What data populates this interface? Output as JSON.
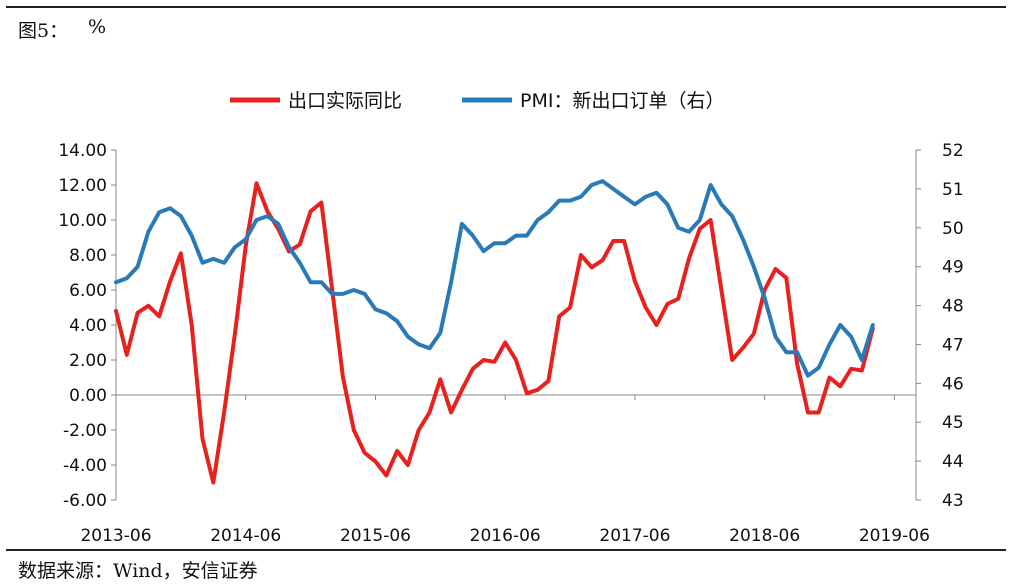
{
  "figure": {
    "label": "图5：",
    "unit": "%",
    "source": "数据来源：Wind，安信证券"
  },
  "chart_data": {
    "type": "line",
    "title": "",
    "legend_position": "top",
    "grid": false,
    "x_tick_labels": [
      "2013-06",
      "2014-06",
      "2015-06",
      "2016-06",
      "2017-06",
      "2018-06",
      "2019-06"
    ],
    "x_start": "2013-06",
    "x_end": "2019-08",
    "left_axis": {
      "range": [
        -6,
        14
      ],
      "ticks": [
        "-6.00",
        "-4.00",
        "-2.00",
        "0.00",
        "2.00",
        "4.00",
        "6.00",
        "8.00",
        "10.00",
        "12.00",
        "14.00"
      ]
    },
    "right_axis": {
      "range": [
        43,
        52
      ],
      "ticks": [
        "43",
        "44",
        "45",
        "46",
        "47",
        "48",
        "49",
        "50",
        "51",
        "52"
      ]
    },
    "series": [
      {
        "name": "出口实际同比",
        "axis": "left",
        "color": "#e8201e",
        "points": [
          [
            "2013-06",
            4.8
          ],
          [
            "2013-07",
            2.3
          ],
          [
            "2013-08",
            4.7
          ],
          [
            "2013-09",
            5.1
          ],
          [
            "2013-10",
            4.5
          ],
          [
            "2013-11",
            6.5
          ],
          [
            "2013-12",
            8.1
          ],
          [
            "2014-01",
            4.0
          ],
          [
            "2014-02",
            -2.5
          ],
          [
            "2014-03",
            -5.0
          ],
          [
            "2014-04",
            -1.0
          ],
          [
            "2014-05",
            3.5
          ],
          [
            "2014-06",
            8.5
          ],
          [
            "2014-07",
            12.1
          ],
          [
            "2014-08",
            10.5
          ],
          [
            "2014-09",
            9.5
          ],
          [
            "2014-10",
            8.2
          ],
          [
            "2014-11",
            8.6
          ],
          [
            "2014-12",
            10.5
          ],
          [
            "2015-01",
            11.0
          ],
          [
            "2015-02",
            6.0
          ],
          [
            "2015-03",
            1.0
          ],
          [
            "2015-04",
            -2.0
          ],
          [
            "2015-05",
            -3.3
          ],
          [
            "2015-06",
            -3.8
          ],
          [
            "2015-07",
            -4.6
          ],
          [
            "2015-08",
            -3.2
          ],
          [
            "2015-09",
            -4.0
          ],
          [
            "2015-10",
            -2.0
          ],
          [
            "2015-11",
            -1.0
          ],
          [
            "2015-12",
            0.9
          ],
          [
            "2016-01",
            -1.0
          ],
          [
            "2016-02",
            0.3
          ],
          [
            "2016-03",
            1.5
          ],
          [
            "2016-04",
            2.0
          ],
          [
            "2016-05",
            1.9
          ],
          [
            "2016-06",
            3.0
          ],
          [
            "2016-07",
            2.0
          ],
          [
            "2016-08",
            0.1
          ],
          [
            "2016-09",
            0.3
          ],
          [
            "2016-10",
            0.8
          ],
          [
            "2016-11",
            4.5
          ],
          [
            "2016-12",
            5.0
          ],
          [
            "2017-01",
            8.0
          ],
          [
            "2017-02",
            7.3
          ],
          [
            "2017-03",
            7.7
          ],
          [
            "2017-04",
            8.8
          ],
          [
            "2017-05",
            8.8
          ],
          [
            "2017-06",
            6.5
          ],
          [
            "2017-07",
            5.0
          ],
          [
            "2017-08",
            4.0
          ],
          [
            "2017-09",
            5.2
          ],
          [
            "2017-10",
            5.5
          ],
          [
            "2017-11",
            7.8
          ],
          [
            "2017-12",
            9.5
          ],
          [
            "2018-01",
            10.0
          ],
          [
            "2018-02",
            6.0
          ],
          [
            "2018-03",
            2.0
          ],
          [
            "2018-04",
            2.7
          ],
          [
            "2018-05",
            3.5
          ],
          [
            "2018-06",
            6.0
          ],
          [
            "2018-07",
            7.2
          ],
          [
            "2018-08",
            6.7
          ],
          [
            "2018-09",
            1.8
          ],
          [
            "2018-10",
            -1.0
          ],
          [
            "2018-11",
            -1.0
          ],
          [
            "2018-12",
            1.0
          ],
          [
            "2019-01",
            0.5
          ],
          [
            "2019-02",
            1.5
          ],
          [
            "2019-03",
            1.4
          ],
          [
            "2019-04",
            3.8
          ]
        ]
      },
      {
        "name": "PMI：新出口订单（右）",
        "axis": "right",
        "color": "#2a7ab8",
        "points": [
          [
            "2013-06",
            48.6
          ],
          [
            "2013-07",
            48.7
          ],
          [
            "2013-08",
            49.0
          ],
          [
            "2013-09",
            49.9
          ],
          [
            "2013-10",
            50.4
          ],
          [
            "2013-11",
            50.5
          ],
          [
            "2013-12",
            50.3
          ],
          [
            "2014-01",
            49.8
          ],
          [
            "2014-02",
            49.1
          ],
          [
            "2014-03",
            49.2
          ],
          [
            "2014-04",
            49.1
          ],
          [
            "2014-05",
            49.5
          ],
          [
            "2014-06",
            49.7
          ],
          [
            "2014-07",
            50.2
          ],
          [
            "2014-08",
            50.3
          ],
          [
            "2014-09",
            50.1
          ],
          [
            "2014-10",
            49.5
          ],
          [
            "2014-11",
            49.1
          ],
          [
            "2014-12",
            48.6
          ],
          [
            "2015-01",
            48.6
          ],
          [
            "2015-02",
            48.3
          ],
          [
            "2015-03",
            48.3
          ],
          [
            "2015-04",
            48.4
          ],
          [
            "2015-05",
            48.3
          ],
          [
            "2015-06",
            47.9
          ],
          [
            "2015-07",
            47.8
          ],
          [
            "2015-08",
            47.6
          ],
          [
            "2015-09",
            47.2
          ],
          [
            "2015-10",
            47.0
          ],
          [
            "2015-11",
            46.9
          ],
          [
            "2015-12",
            47.3
          ],
          [
            "2016-01",
            48.6
          ],
          [
            "2016-02",
            50.1
          ],
          [
            "2016-03",
            49.8
          ],
          [
            "2016-04",
            49.4
          ],
          [
            "2016-05",
            49.6
          ],
          [
            "2016-06",
            49.6
          ],
          [
            "2016-07",
            49.8
          ],
          [
            "2016-08",
            49.8
          ],
          [
            "2016-09",
            50.2
          ],
          [
            "2016-10",
            50.4
          ],
          [
            "2016-11",
            50.7
          ],
          [
            "2016-12",
            50.7
          ],
          [
            "2017-01",
            50.8
          ],
          [
            "2017-02",
            51.1
          ],
          [
            "2017-03",
            51.2
          ],
          [
            "2017-04",
            51.0
          ],
          [
            "2017-05",
            50.8
          ],
          [
            "2017-06",
            50.6
          ],
          [
            "2017-07",
            50.8
          ],
          [
            "2017-08",
            50.9
          ],
          [
            "2017-09",
            50.6
          ],
          [
            "2017-10",
            50.0
          ],
          [
            "2017-11",
            49.9
          ],
          [
            "2017-12",
            50.2
          ],
          [
            "2018-01",
            51.1
          ],
          [
            "2018-02",
            50.6
          ],
          [
            "2018-03",
            50.3
          ],
          [
            "2018-04",
            49.7
          ],
          [
            "2018-05",
            49.0
          ],
          [
            "2018-06",
            48.2
          ],
          [
            "2018-07",
            47.2
          ],
          [
            "2018-08",
            46.8
          ],
          [
            "2018-09",
            46.8
          ],
          [
            "2018-10",
            46.2
          ],
          [
            "2018-11",
            46.4
          ],
          [
            "2018-12",
            47.0
          ],
          [
            "2019-01",
            47.5
          ],
          [
            "2019-02",
            47.2
          ],
          [
            "2019-03",
            46.6
          ],
          [
            "2019-04",
            47.5
          ]
        ]
      }
    ]
  }
}
